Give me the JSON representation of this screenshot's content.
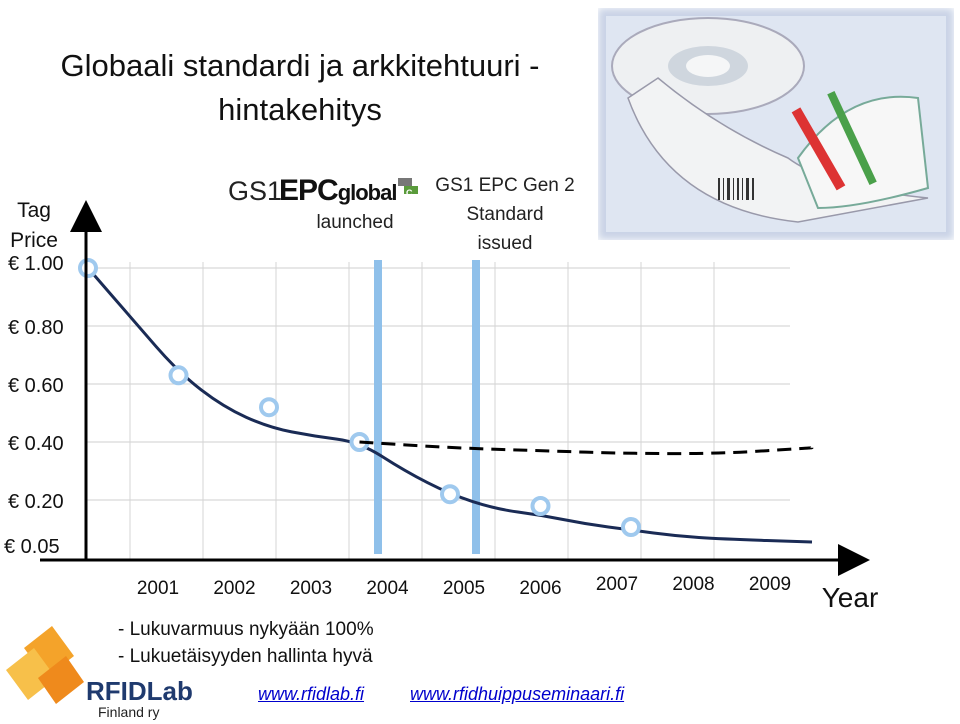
{
  "slide": {
    "title": "Globaali standardi ja arkkitehtuuri - hintakehitys",
    "y_title_line1": "Tag",
    "y_title_line2": "Price",
    "x_title": "Year",
    "logo_gs1": "GS1",
    "logo_epc": "EPC",
    "logo_global": "global",
    "note_launched": "launched",
    "note_gen2_l1": "GS1 EPC Gen 2",
    "note_gen2_l2": "Standard",
    "note_gen2_l3": "issued",
    "bullet1": "- Lukuvarmuus nykyään 100%",
    "bullet2": "- Lukuetäisyyden hallinta hyvä",
    "link1": "www.rfidlab.fi",
    "link2": "www.rfidhuippuseminaari.fi",
    "rfid_brand": "RFIDLab",
    "rfid_sub": "Finland ry"
  },
  "chart_data": {
    "type": "line",
    "title": "Globaali standardi ja arkkitehtuuri - hintakehitys",
    "xlabel": "Year",
    "ylabel": "Tag Price",
    "x_ticks": [
      "2001",
      "2002",
      "2003",
      "2004",
      "2005",
      "2006",
      "2007",
      "2008",
      "2009"
    ],
    "y_ticks": [
      "€ 1.00",
      "€ 0.80",
      "€ 0.60",
      "€ 0.40",
      "€ 0.20",
      "€ 0.05"
    ],
    "y_values": [
      1.0,
      0.8,
      0.6,
      0.4,
      0.2,
      0.05
    ],
    "series": [
      {
        "curve": [
          [
            2001,
            1.0
          ],
          [
            2001.5,
            0.82
          ],
          [
            2002,
            0.64
          ],
          [
            2002.5,
            0.52
          ],
          [
            2003,
            0.45
          ],
          [
            2003.5,
            0.42
          ],
          [
            2004,
            0.4
          ],
          [
            2004.5,
            0.3
          ],
          [
            2005,
            0.22
          ],
          [
            2005.5,
            0.17
          ],
          [
            2006,
            0.15
          ],
          [
            2006.5,
            0.12
          ],
          [
            2007,
            0.1
          ],
          [
            2007.5,
            0.08
          ],
          [
            2008,
            0.07
          ],
          [
            2009,
            0.06
          ]
        ],
        "points": [
          [
            2001,
            1.0
          ],
          [
            2002,
            0.63
          ],
          [
            2003,
            0.52
          ],
          [
            2004,
            0.4
          ],
          [
            2005,
            0.22
          ],
          [
            2006,
            0.18
          ],
          [
            2007,
            0.11
          ]
        ],
        "color": "#1a2b55"
      },
      {
        "style": "dashed",
        "curve": [
          [
            2004,
            0.4
          ],
          [
            2005,
            0.38
          ],
          [
            2006,
            0.37
          ],
          [
            2007,
            0.36
          ],
          [
            2008,
            0.36
          ],
          [
            2009,
            0.38
          ]
        ],
        "color": "#000000"
      }
    ],
    "markers": [
      2004,
      2005
    ],
    "marker_color": "#8fc0ea",
    "point_color": "#9fc9ee",
    "grid": true
  }
}
